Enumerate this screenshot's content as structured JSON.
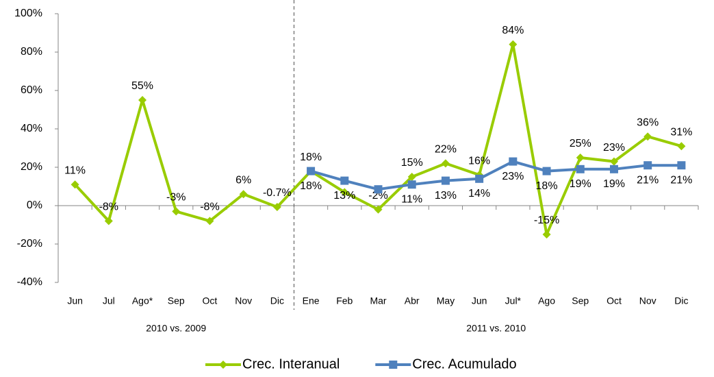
{
  "chart_data": {
    "type": "line",
    "categories": [
      "Jun",
      "Jul",
      "Ago*",
      "Sep",
      "Oct",
      "Nov",
      "Dic",
      "Ene",
      "Feb",
      "Mar",
      "Abr",
      "May",
      "Jun",
      "Jul*",
      "Ago",
      "Sep",
      "Oct",
      "Nov",
      "Dic"
    ],
    "groups": [
      {
        "label": "2010 vs. 2009",
        "count": 7
      },
      {
        "label": "2011 vs. 2010",
        "count": 12
      }
    ],
    "series": [
      {
        "name": "Crec. Interanual",
        "color": "#99cc00",
        "values": [
          11,
          -8,
          55,
          -3,
          -8,
          6,
          -0.7,
          18,
          7,
          -2,
          15,
          22,
          16,
          84,
          -15,
          25,
          23,
          36,
          31
        ],
        "value_labels": [
          "11%",
          "-8%",
          "55%",
          "-3%",
          "-8%",
          "6%",
          "-0.7%",
          "18%",
          null,
          "-2%",
          "15%",
          "22%",
          "16%",
          "84%",
          "-15%",
          "25%",
          "23%",
          "36%",
          "31%"
        ]
      },
      {
        "name": "Crec. Acumulado",
        "color": "#4f81bd",
        "values": [
          null,
          null,
          null,
          null,
          null,
          null,
          null,
          18,
          13,
          8.5,
          11,
          13,
          14,
          23,
          18,
          19,
          19,
          21,
          21
        ],
        "value_labels": [
          null,
          null,
          null,
          null,
          null,
          null,
          null,
          "18%",
          "13%",
          null,
          "11%",
          "13%",
          "14%",
          "23%",
          "18%",
          "19%",
          "19%",
          "21%",
          "21%"
        ]
      }
    ],
    "ylim": [
      -40,
      100
    ],
    "yticks": [
      {
        "value": -40,
        "label": "-40%"
      },
      {
        "value": -20,
        "label": "-20%"
      },
      {
        "value": 0,
        "label": "0%"
      },
      {
        "value": 20,
        "label": "20%"
      },
      {
        "value": 40,
        "label": "40%"
      },
      {
        "value": 60,
        "label": "60%"
      },
      {
        "value": 80,
        "label": "80%"
      },
      {
        "value": 100,
        "label": "100%"
      }
    ],
    "grid": false,
    "legend": "bottom"
  }
}
